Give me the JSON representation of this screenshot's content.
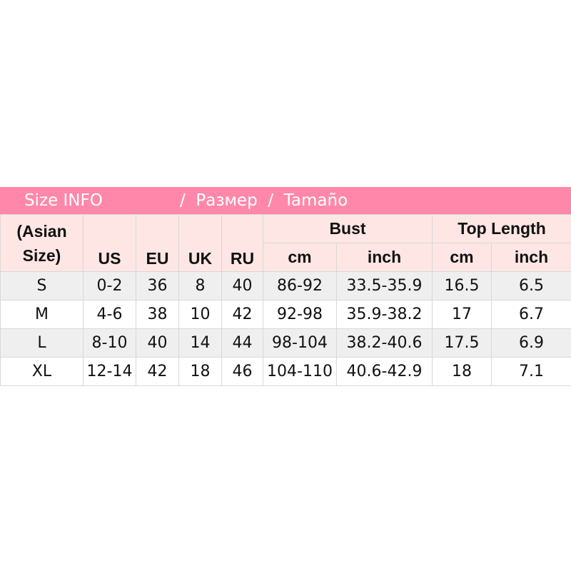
{
  "title_bar": {
    "part1": "Size INFO",
    "part2": "/  Размер  /  Tamaño",
    "color": "#ff88aa"
  },
  "header": {
    "asian_size": "(Asian Size)",
    "us": "US",
    "eu": "EU",
    "uk": "UK",
    "ru": "RU",
    "bust": "Bust",
    "top_length": "Top Length",
    "cm": "cm",
    "inch": "inch"
  },
  "rows": [
    {
      "size": "S",
      "us": "0-2",
      "eu": "36",
      "uk": "8",
      "ru": "40",
      "bust_cm": "86-92",
      "bust_inch": "33.5-35.9",
      "len_cm": "16.5",
      "len_inch": "6.5"
    },
    {
      "size": "M",
      "us": "4-6",
      "eu": "38",
      "uk": "10",
      "ru": "42",
      "bust_cm": "92-98",
      "bust_inch": "35.9-38.2",
      "len_cm": "17",
      "len_inch": "6.7"
    },
    {
      "size": "L",
      "us": "8-10",
      "eu": "40",
      "uk": "14",
      "ru": "44",
      "bust_cm": "98-104",
      "bust_inch": "38.2-40.6",
      "len_cm": "17.5",
      "len_inch": "6.9"
    },
    {
      "size": "XL",
      "us": "12-14",
      "eu": "42",
      "uk": "18",
      "ru": "46",
      "bust_cm": "104-110",
      "bust_inch": "40.6-42.9",
      "len_cm": "18",
      "len_inch": "7.1"
    }
  ]
}
